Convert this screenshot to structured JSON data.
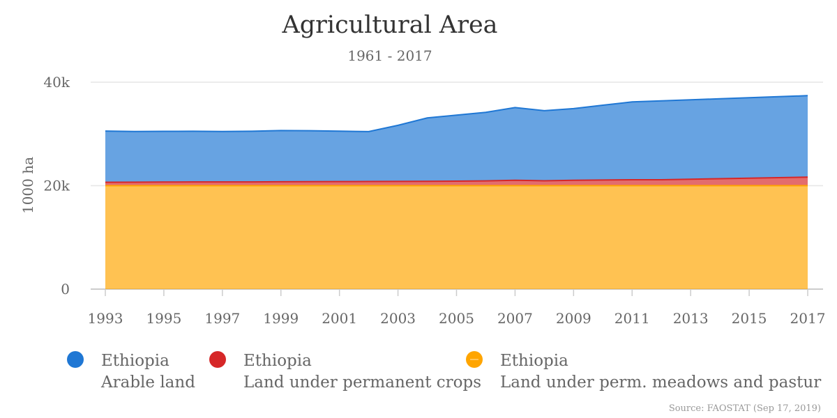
{
  "chart_data": {
    "type": "area",
    "stacked": true,
    "title": "Agricultural Area",
    "subtitle": "1961 - 2017",
    "xlabel": "",
    "ylabel": "1000 ha",
    "ylim": [
      0,
      40000
    ],
    "y_ticks": [
      0,
      20000,
      40000
    ],
    "y_tick_labels": [
      "0",
      "20k",
      "40k"
    ],
    "x": [
      1993,
      1994,
      1995,
      1996,
      1997,
      1998,
      1999,
      2000,
      2001,
      2002,
      2003,
      2004,
      2005,
      2006,
      2007,
      2008,
      2009,
      2010,
      2011,
      2012,
      2013,
      2014,
      2015,
      2016,
      2017
    ],
    "x_ticks": [
      1993,
      1995,
      1997,
      1999,
      2001,
      2003,
      2005,
      2007,
      2009,
      2011,
      2013,
      2015,
      2017
    ],
    "grid": true,
    "legend_placement": "bottom",
    "series": [
      {
        "country": "Ethiopia",
        "name": "Land under perm. meadows and pastures",
        "legend_text": "Land under perm. meadows and pastur",
        "color": "#ffa500",
        "values": [
          20000,
          20000,
          20000,
          20000,
          20000,
          20000,
          20000,
          20000,
          20000,
          20000,
          20000,
          20000,
          20000,
          20000,
          20000,
          20000,
          20000,
          20000,
          20000,
          20000,
          20000,
          20000,
          20000,
          20000,
          20000
        ]
      },
      {
        "country": "Ethiopia",
        "name": "Land under permanent crops",
        "legend_text": "Land under permanent crops",
        "color": "#d62728",
        "values": [
          650,
          680,
          700,
          720,
          730,
          720,
          750,
          770,
          790,
          800,
          820,
          850,
          880,
          920,
          1050,
          950,
          1050,
          1100,
          1150,
          1150,
          1250,
          1350,
          1450,
          1550,
          1650
        ]
      },
      {
        "country": "Ethiopia",
        "name": "Arable land",
        "legend_text": "Arable land",
        "color": "#1f77d4",
        "values": [
          9900,
          9800,
          9800,
          9800,
          9750,
          9800,
          9900,
          9850,
          9750,
          9650,
          10850,
          12250,
          12750,
          13250,
          14050,
          13550,
          13850,
          14450,
          15050,
          15250,
          15350,
          15450,
          15550,
          15650,
          15750
        ]
      }
    ],
    "credits": "Source: FAOSTAT (Sep 17, 2019)"
  }
}
